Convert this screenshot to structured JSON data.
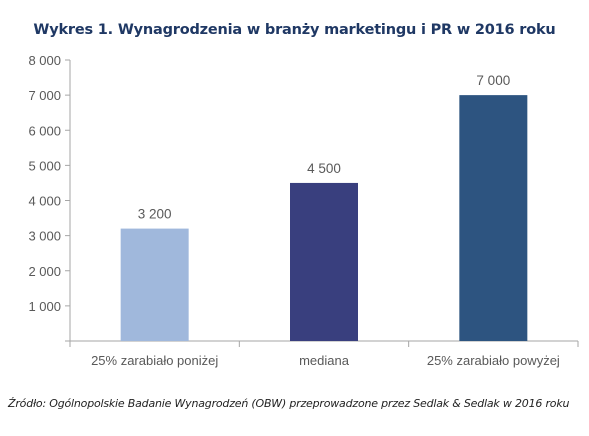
{
  "chart_data": {
    "type": "bar",
    "title": "Wykres 1. Wynagrodzenia w branży marketingu i PR w 2016 roku",
    "categories": [
      "25% zarabiało poniżej",
      "mediana",
      "25% zarabiało powyżej"
    ],
    "values": [
      3200,
      4500,
      7000
    ],
    "value_labels": [
      "3 200",
      "4 500",
      "7 000"
    ],
    "bar_colors": [
      "#a0b8dc",
      "#393f7e",
      "#2d5480"
    ],
    "ylim": [
      0,
      8000
    ],
    "yticks": [
      0,
      1000,
      2000,
      3000,
      4000,
      5000,
      6000,
      7000,
      8000
    ],
    "ytick_labels": [
      "",
      "1 000",
      "2 000",
      "3 000",
      "4 000",
      "5 000",
      "6 000",
      "7 000",
      "8 000"
    ],
    "xlabel": "",
    "ylabel": "",
    "grid": false,
    "legend": "none"
  },
  "source": "Źródło: Ogólnopolskie Badanie Wynagrodzeń (OBW) przeprowadzone  przez Sedlak & Sedlak w 2016 roku"
}
